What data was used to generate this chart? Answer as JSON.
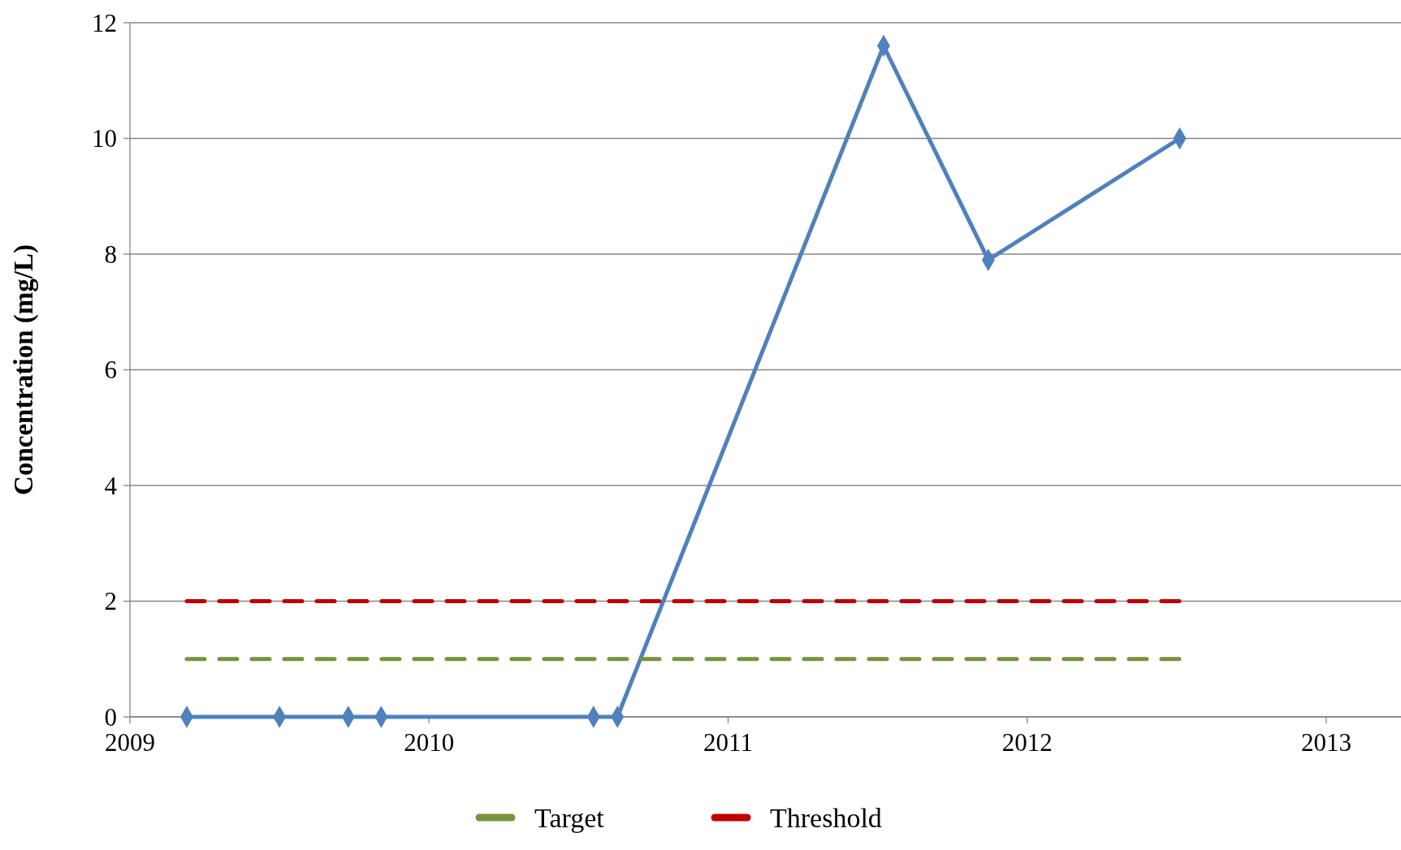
{
  "chart_data": {
    "type": "line",
    "ylabel": "Concentration (mg/L)",
    "xlim": [
      2009,
      2013.25
    ],
    "xticks": [
      2009,
      2010,
      2011,
      2012,
      2013
    ],
    "ylim": [
      0,
      12
    ],
    "yticks": [
      0,
      2,
      4,
      6,
      8,
      10,
      12
    ],
    "grid": "y",
    "legend": "bottom",
    "series": [
      {
        "color": "#4f81bd",
        "marker": "diamond",
        "line_style": "solid",
        "x": [
          2009.19,
          2009.5,
          2009.73,
          2009.84,
          2010.55,
          2010.63,
          2011.52,
          2011.87,
          2012.51
        ],
        "values": [
          0,
          0,
          0,
          0,
          0,
          0,
          11.6,
          7.9,
          10
        ]
      },
      {
        "name": "Target",
        "color": "#77933c",
        "marker": "none",
        "line_style": "dashed",
        "x": [
          2009.19,
          2012.51
        ],
        "values": [
          1,
          1
        ]
      },
      {
        "name": "Threshold",
        "color": "#c00000",
        "marker": "none",
        "line_style": "dashed",
        "x": [
          2009.19,
          2012.51
        ],
        "values": [
          2,
          2
        ]
      }
    ]
  }
}
